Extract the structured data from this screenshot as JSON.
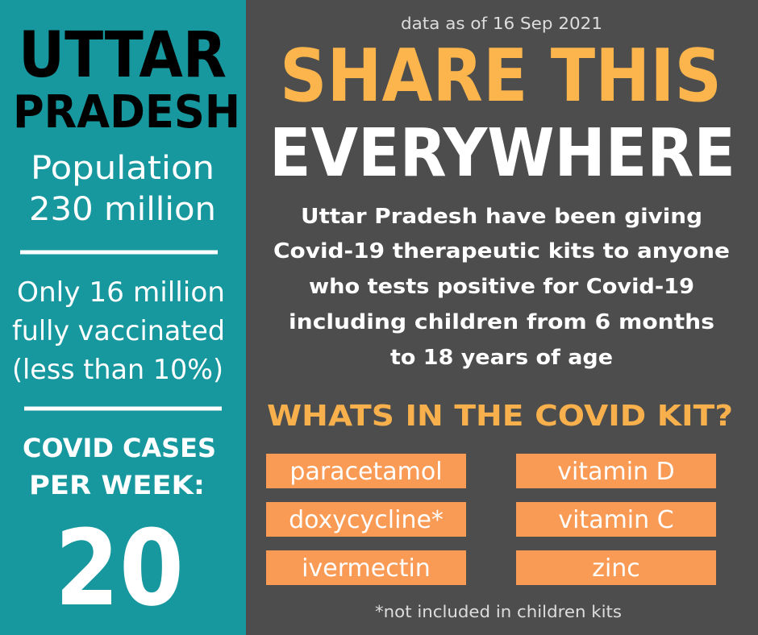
{
  "left_panel": {
    "title_lines": [
      "UTTAR",
      "PRADESH"
    ],
    "population_lines": [
      "Population",
      "230 million"
    ],
    "vaccination_lines": [
      "Only 16 million",
      "fully vaccinated",
      "(less than 10%)"
    ],
    "cases_label_lines": [
      "COVID CASES",
      "PER WEEK:"
    ],
    "cases_value": "20"
  },
  "right_panel": {
    "date_note": "data as of 16 Sep 2021",
    "headline_lines": [
      "SHARE THIS",
      "EVERYWHERE"
    ],
    "description_lines": [
      "Uttar Pradesh have been giving",
      "Covid-19 therapeutic kits to anyone",
      "who tests positive for Covid-19",
      "including children from 6 months",
      "to 18 years of age"
    ],
    "kit_heading": "WHATS IN THE COVID KIT?",
    "kit_items": [
      "paracetamol",
      "vitamin D",
      "doxycycline*",
      "vitamin C",
      "ivermectin",
      "zinc"
    ],
    "footnote": "*not included in children kits"
  }
}
